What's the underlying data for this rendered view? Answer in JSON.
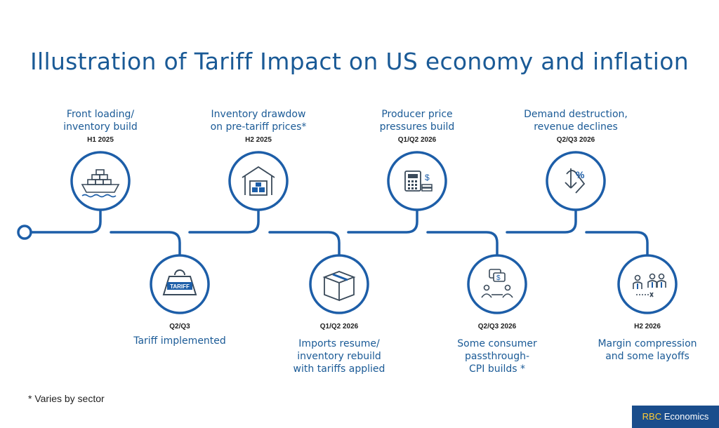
{
  "title": "Illustration of Tariff Impact on US economy and inflation",
  "colors": {
    "primary": "#1a5a96",
    "line": "#1d5ea8",
    "icon": "#3a4a5a",
    "brand_bg": "#1a4d8c",
    "brand_accent": "#ffcc33"
  },
  "stages": [
    {
      "label": "Front loading/\ninventory build",
      "period": "H1 2025",
      "icon": "cargo-ship-icon"
    },
    {
      "label": "Tariff implemented",
      "period": "Q2/Q3",
      "icon": "tariff-weight-icon"
    },
    {
      "label": "Inventory drawdow\non pre-tariff prices*",
      "period": "H2 2025",
      "icon": "warehouse-icon"
    },
    {
      "label": "Imports resume/\ninventory rebuild\nwith tariffs applied",
      "period": "Q1/Q2 2026",
      "icon": "box-icon"
    },
    {
      "label": "Producer price\npressures build",
      "period": "Q1/Q2 2026",
      "icon": "calculator-icon"
    },
    {
      "label": "Some consumer\npassthrough-\nCPI builds *",
      "period": "Q2/Q3 2026",
      "icon": "consumer-negotiation-icon"
    },
    {
      "label": "Demand destruction,\nrevenue declines",
      "period": "Q2/Q3 2026",
      "icon": "percent-decline-icon"
    },
    {
      "label": "Margin compression\nand some layoffs",
      "period": "H2 2026",
      "icon": "layoffs-icon"
    }
  ],
  "footnote": "* Varies by sector",
  "brand": {
    "rbc": "RBC",
    "economics": "Economics"
  }
}
